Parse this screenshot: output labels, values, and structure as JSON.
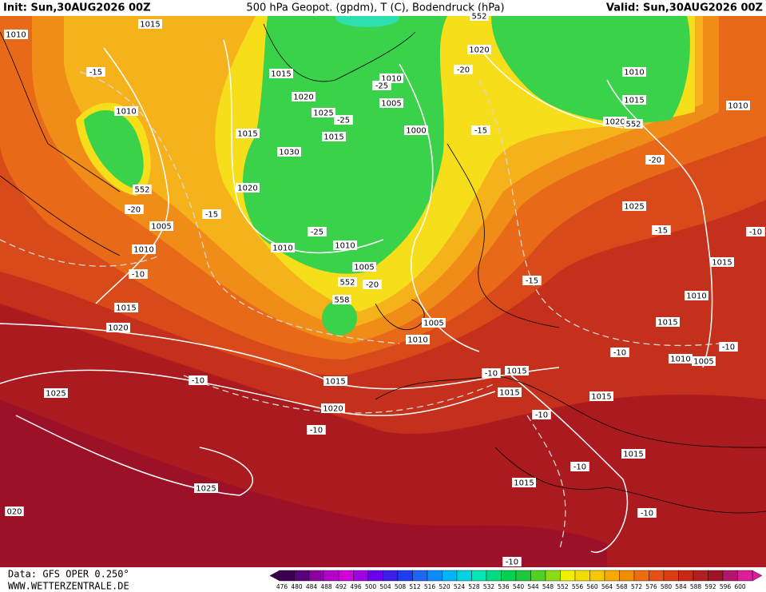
{
  "header": {
    "init": "Init: Sun,30AUG2026 00Z",
    "title": "500 hPa Geopot. (gpdm), T (C), Bodendruck (hPa)",
    "valid": "Valid: Sun,30AUG2026 00Z"
  },
  "footer": {
    "source": "Data: GFS OPER 0.250°",
    "website": "WWW.WETTERZENTRALE.DE"
  },
  "colorbar": {
    "ticks": [
      476,
      480,
      484,
      488,
      492,
      496,
      500,
      504,
      508,
      512,
      516,
      520,
      524,
      528,
      532,
      536,
      540,
      544,
      548,
      552,
      556,
      560,
      564,
      568,
      572,
      576,
      580,
      584,
      588,
      592,
      596,
      600
    ],
    "colors": [
      "#3c0050",
      "#5a0078",
      "#8c00a0",
      "#b400c8",
      "#d200dc",
      "#a000e6",
      "#6e00f0",
      "#3c1ee6",
      "#1e3cf0",
      "#1e64f5",
      "#0a8cfa",
      "#00b4fa",
      "#00d2e6",
      "#00e6b4",
      "#00dc82",
      "#00d250",
      "#1ec83c",
      "#50d21e",
      "#8cdc14",
      "#f0f000",
      "#f5dc00",
      "#f5c800",
      "#f5aa00",
      "#f08c00",
      "#eb6e0a",
      "#e65014",
      "#dc3c14",
      "#c82814",
      "#b41e1e",
      "#a01428",
      "#b4146e",
      "#dc1e9b"
    ]
  },
  "map_labels": {
    "isobars": [
      "1010",
      "1015",
      "1015",
      "1020",
      "1025",
      "1015",
      "1030",
      "1015",
      "1020",
      "1010",
      "1005",
      "1000",
      "1010",
      "552",
      "1005",
      "1010",
      "1015",
      "1020",
      "1010",
      "1010",
      "1005",
      "552",
      "558",
      "1005",
      "1010",
      "1015",
      "1020",
      "1025",
      "1025",
      "020",
      "1015",
      "1015",
      "1015",
      "1015",
      "1015",
      "1020",
      "1010",
      "1015",
      "1020",
      "552",
      "1010",
      "1025",
      "1015",
      "1010",
      "1015",
      "1010",
      "1005",
      "552"
    ],
    "temperatures": [
      "-15",
      "-20",
      "-25",
      "-25",
      "-15",
      "-20",
      "-20",
      "-15",
      "-25",
      "-10",
      "-15",
      "-20",
      "-15",
      "-10",
      "-10",
      "-10",
      "-10",
      "-10",
      "-10",
      "-10",
      "-10",
      "-10",
      "-10"
    ]
  }
}
